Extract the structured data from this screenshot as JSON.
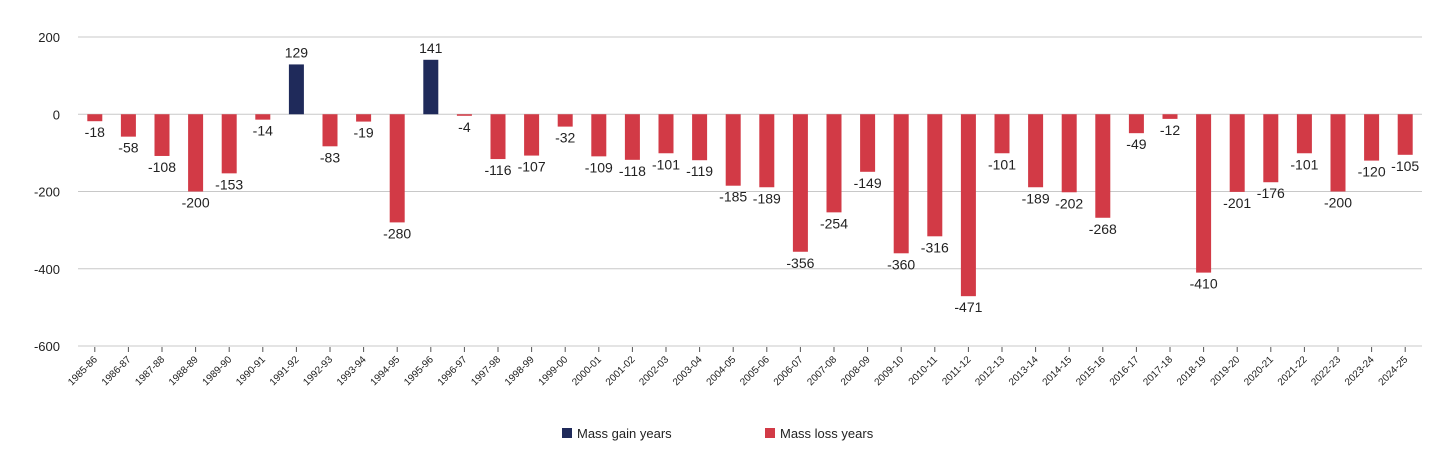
{
  "chart_data": {
    "type": "bar",
    "categories": [
      "1985-86",
      "1986-87",
      "1987-88",
      "1988-89",
      "1989-90",
      "1990-91",
      "1991-92",
      "1992-93",
      "1993-94",
      "1994-95",
      "1995-96",
      "1996-97",
      "1997-98",
      "1998-99",
      "1999-00",
      "2000-01",
      "2001-02",
      "2002-03",
      "2003-04",
      "2004-05",
      "2005-06",
      "2006-07",
      "2007-08",
      "2008-09",
      "2009-10",
      "2010-11",
      "2011-12",
      "2012-13",
      "2013-14",
      "2014-15",
      "2015-16",
      "2016-17",
      "2017-18",
      "2018-19",
      "2019-20",
      "2020-21",
      "2021-22",
      "2022-23",
      "2023-24",
      "2024-25"
    ],
    "values": [
      -18,
      -58,
      -108,
      -200,
      -153,
      -14,
      129,
      -83,
      -19,
      -280,
      141,
      -4,
      -116,
      -107,
      -32,
      -109,
      -118,
      -101,
      -119,
      -185,
      -189,
      -356,
      -254,
      -149,
      -360,
      -316,
      -471,
      -101,
      -189,
      -202,
      -268,
      -49,
      -12,
      -410,
      -201,
      -176,
      -101,
      -200,
      -120,
      -105
    ],
    "ylim": [
      -600,
      200
    ],
    "yticks": [
      200,
      0,
      -200,
      -400,
      -600
    ],
    "grid": true,
    "legend_position": "bottom",
    "series_legend": [
      {
        "name": "Mass gain years",
        "color": "#1f2a5a"
      },
      {
        "name": "Mass loss years",
        "color": "#d23a46"
      }
    ]
  }
}
